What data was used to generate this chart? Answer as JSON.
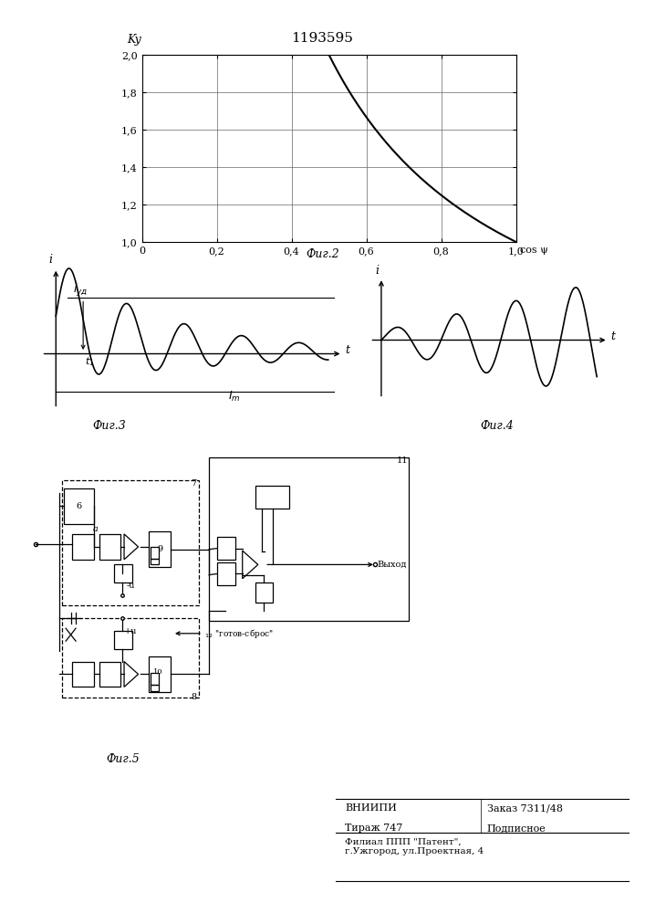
{
  "title": "1193595",
  "fig2_title": "Фиг.2",
  "fig3_title": "Фиг.3",
  "fig4_title": "Фиг.4",
  "fig5_title": "Фиг.5",
  "background": "#ffffff",
  "line_color": "#000000",
  "graph1_ylabel": "Ky",
  "graph1_xlabel": "cosψ",
  "graph1_yticks": [
    1.0,
    1.2,
    1.4,
    1.6,
    1.8,
    2.0
  ],
  "graph1_xtick_vals": [
    0,
    0.2,
    0.4,
    0.6,
    0.8,
    1.0
  ],
  "graph1_xtick_labels": [
    "0",
    "0,2",
    "0,4",
    "0,6",
    "0,8",
    "1,0"
  ],
  "graph1_ytick_labels": [
    "1,0",
    "1,2",
    "1,4",
    "1,6",
    "1,8",
    "2,0"
  ],
  "graph1_xlim": [
    0,
    1.0
  ],
  "graph1_ylim": [
    1.0,
    2.0
  ],
  "vnipi_text": "ВНИИПИ",
  "order_text": "Заказ 7311/48",
  "tirazh_text": "Тираж 747",
  "podpisnoe_text": "Подписное",
  "filial_text": "Филиал ППП \"Патент\",\nг.Ужгород, ул.Проектная, 4"
}
